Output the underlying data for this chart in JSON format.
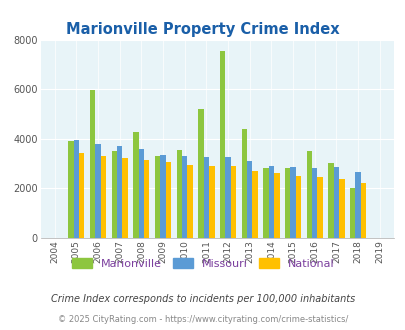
{
  "title": "Marionville Property Crime Index",
  "years": [
    2004,
    2005,
    2006,
    2007,
    2008,
    2009,
    2010,
    2011,
    2012,
    2013,
    2014,
    2015,
    2016,
    2017,
    2018,
    2019
  ],
  "marionville": [
    null,
    3900,
    5950,
    3500,
    4250,
    3300,
    3550,
    5200,
    7520,
    4400,
    2800,
    2800,
    3500,
    3000,
    2000,
    null
  ],
  "missouri": [
    null,
    3950,
    3800,
    3700,
    3600,
    3350,
    3300,
    3250,
    3250,
    3100,
    2900,
    2850,
    2800,
    2850,
    2650,
    null
  ],
  "national": [
    null,
    3400,
    3300,
    3200,
    3150,
    3050,
    2950,
    2900,
    2900,
    2700,
    2600,
    2500,
    2450,
    2350,
    2200,
    null
  ],
  "color_marionville": "#8dc63f",
  "color_missouri": "#5b9bd5",
  "color_national": "#ffc000",
  "bg_color": "#ddeef6",
  "plot_bg": "#e8f4f8",
  "ylim": [
    0,
    8000
  ],
  "yticks": [
    0,
    2000,
    4000,
    6000,
    8000
  ],
  "legend_labels": [
    "Marionville",
    "Missouri",
    "National"
  ],
  "legend_text_color": "#7b3f9e",
  "footnote1": "Crime Index corresponds to incidents per 100,000 inhabitants",
  "footnote2": "© 2025 CityRating.com - https://www.cityrating.com/crime-statistics/",
  "title_color": "#1a5fa8",
  "footnote1_color": "#444444",
  "footnote2_color": "#888888",
  "bar_width": 0.25
}
